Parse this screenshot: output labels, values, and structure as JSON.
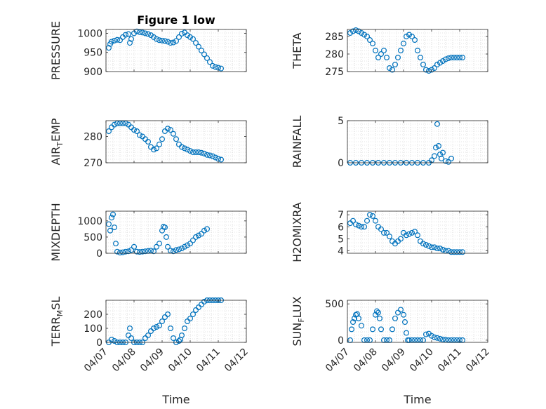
{
  "chart_data": [
    {
      "type": "scatter",
      "title": "Figure 1 low",
      "ylabel": "PRESSURE",
      "ylabel_sub": "",
      "ylabel_post": "",
      "xlim": [
        0,
        5
      ],
      "ylim": [
        900,
        1010
      ],
      "yticks": [
        900,
        950,
        1000
      ],
      "xticks": [
        "04/07",
        "04/08",
        "04/09",
        "04/10",
        "04/11",
        "04/12"
      ],
      "show_xticklabels": false,
      "xlabel": "",
      "x": [
        0.1,
        0.15,
        0.2,
        0.3,
        0.4,
        0.5,
        0.6,
        0.7,
        0.8,
        0.85,
        0.9,
        1.0,
        1.1,
        1.2,
        1.3,
        1.4,
        1.5,
        1.6,
        1.7,
        1.8,
        1.9,
        2.0,
        2.1,
        2.2,
        2.3,
        2.4,
        2.5,
        2.6,
        2.7,
        2.8,
        2.9,
        3.0,
        3.1,
        3.2,
        3.3,
        3.4,
        3.5,
        3.6,
        3.7,
        3.8,
        3.9,
        4.0,
        4.1
      ],
      "y": [
        962,
        972,
        978,
        981,
        983,
        982,
        990,
        996,
        998,
        975,
        985,
        1000,
        1005,
        1003,
        1002,
        1000,
        998,
        995,
        990,
        985,
        982,
        981,
        980,
        978,
        975,
        976,
        980,
        990,
        999,
        1002,
        995,
        990,
        985,
        975,
        965,
        955,
        945,
        935,
        925,
        915,
        912,
        910,
        908
      ]
    },
    {
      "type": "scatter",
      "title": "",
      "ylabel": "THETA",
      "ylabel_sub": "",
      "ylabel_post": "",
      "xlim": [
        0,
        5
      ],
      "ylim": [
        275,
        287
      ],
      "yticks": [
        275,
        280,
        285
      ],
      "xticks": [
        "04/07",
        "04/08",
        "04/09",
        "04/10",
        "04/11",
        "04/12"
      ],
      "show_xticklabels": false,
      "xlabel": "",
      "x": [
        0.1,
        0.2,
        0.3,
        0.4,
        0.5,
        0.6,
        0.7,
        0.8,
        0.9,
        1.0,
        1.1,
        1.2,
        1.3,
        1.4,
        1.5,
        1.6,
        1.7,
        1.8,
        1.9,
        2.0,
        2.1,
        2.2,
        2.3,
        2.4,
        2.5,
        2.6,
        2.7,
        2.8,
        2.9,
        3.0,
        3.1,
        3.2,
        3.3,
        3.4,
        3.5,
        3.6,
        3.7,
        3.8,
        3.9,
        4.0,
        4.1
      ],
      "y": [
        286,
        286.5,
        286.8,
        286.5,
        286,
        285.5,
        285,
        284,
        283,
        281,
        279,
        280,
        281,
        279,
        276,
        275.5,
        277,
        279,
        281,
        283,
        285,
        285.5,
        285,
        284,
        281,
        279,
        277,
        275.5,
        275.2,
        275.5,
        276,
        277,
        277.5,
        278,
        278.5,
        278.8,
        279,
        279,
        279,
        279,
        279
      ]
    },
    {
      "type": "scatter",
      "title": "",
      "ylabel": "AIR",
      "ylabel_sub": "T",
      "ylabel_post": "EMP",
      "xlim": [
        0,
        5
      ],
      "ylim": [
        270,
        286
      ],
      "yticks": [
        270,
        280
      ],
      "xticks": [
        "04/07",
        "04/08",
        "04/09",
        "04/10",
        "04/11",
        "04/12"
      ],
      "show_xticklabels": false,
      "xlabel": "",
      "x": [
        0.1,
        0.2,
        0.3,
        0.4,
        0.5,
        0.6,
        0.7,
        0.8,
        0.9,
        1.0,
        1.1,
        1.2,
        1.3,
        1.4,
        1.5,
        1.6,
        1.7,
        1.8,
        1.9,
        2.0,
        2.1,
        2.2,
        2.3,
        2.4,
        2.5,
        2.6,
        2.7,
        2.8,
        2.9,
        3.0,
        3.1,
        3.2,
        3.3,
        3.4,
        3.5,
        3.6,
        3.7,
        3.8,
        3.9,
        4.0,
        4.1
      ],
      "y": [
        282,
        283.5,
        284.5,
        285,
        285,
        285,
        285,
        284.5,
        283.5,
        282.5,
        282,
        280.5,
        280,
        279,
        278,
        276,
        275,
        275.5,
        277,
        279,
        282,
        283,
        282.5,
        281,
        279,
        277,
        276,
        275.5,
        275,
        274.5,
        274,
        274,
        274,
        273.8,
        273.5,
        273,
        272.8,
        272.5,
        272,
        271.5,
        271.2
      ]
    },
    {
      "type": "scatter",
      "title": "",
      "ylabel": "RAINFALL",
      "ylabel_sub": "",
      "ylabel_post": "",
      "xlim": [
        0,
        5
      ],
      "ylim": [
        0,
        5
      ],
      "yticks": [
        0,
        5
      ],
      "xticks": [
        "04/07",
        "04/08",
        "04/09",
        "04/10",
        "04/11",
        "04/12"
      ],
      "show_xticklabels": false,
      "xlabel": "",
      "x": [
        0.1,
        0.3,
        0.5,
        0.7,
        0.9,
        1.1,
        1.3,
        1.5,
        1.7,
        1.9,
        2.1,
        2.3,
        2.5,
        2.7,
        2.9,
        3.0,
        3.1,
        3.15,
        3.2,
        3.25,
        3.3,
        3.35,
        3.4,
        3.5,
        3.6,
        3.7
      ],
      "y": [
        0,
        0,
        0,
        0,
        0,
        0,
        0,
        0,
        0,
        0,
        0,
        0,
        0,
        0,
        0,
        0.3,
        0.8,
        1.8,
        4.6,
        2.0,
        1.0,
        0.5,
        1.2,
        0.2,
        0.1,
        0.5
      ]
    },
    {
      "type": "scatter",
      "title": "",
      "ylabel": "MIXDEPTH",
      "ylabel_sub": "",
      "ylabel_post": "",
      "xlim": [
        0,
        5
      ],
      "ylim": [
        0,
        1300
      ],
      "yticks": [
        0,
        500,
        1000
      ],
      "xticks": [
        "04/07",
        "04/08",
        "04/09",
        "04/10",
        "04/11",
        "04/12"
      ],
      "show_xticklabels": false,
      "xlabel": "",
      "x": [
        0.1,
        0.15,
        0.2,
        0.25,
        0.3,
        0.35,
        0.4,
        0.5,
        0.6,
        0.7,
        0.8,
        0.9,
        1.0,
        1.1,
        1.2,
        1.3,
        1.4,
        1.5,
        1.6,
        1.7,
        1.8,
        1.9,
        2.0,
        2.05,
        2.1,
        2.15,
        2.2,
        2.3,
        2.4,
        2.5,
        2.6,
        2.7,
        2.8,
        2.9,
        3.0,
        3.1,
        3.2,
        3.3,
        3.4,
        3.5,
        3.6
      ],
      "y": [
        900,
        700,
        1100,
        1200,
        800,
        300,
        50,
        20,
        30,
        50,
        60,
        100,
        200,
        50,
        40,
        50,
        60,
        70,
        80,
        60,
        200,
        300,
        700,
        820,
        800,
        500,
        200,
        80,
        60,
        100,
        120,
        150,
        200,
        250,
        300,
        400,
        500,
        550,
        600,
        700,
        750
      ]
    },
    {
      "type": "scatter",
      "title": "",
      "ylabel": "H2OMIXRA",
      "ylabel_sub": "",
      "ylabel_post": "",
      "xlim": [
        0,
        5
      ],
      "ylim": [
        3.8,
        7.3
      ],
      "yticks": [
        4,
        5,
        6,
        7
      ],
      "xticks": [
        "04/07",
        "04/08",
        "04/09",
        "04/10",
        "04/11",
        "04/12"
      ],
      "show_xticklabels": false,
      "xlabel": "",
      "x": [
        0.1,
        0.2,
        0.3,
        0.4,
        0.5,
        0.6,
        0.7,
        0.8,
        0.9,
        1.0,
        1.1,
        1.2,
        1.3,
        1.4,
        1.5,
        1.6,
        1.7,
        1.8,
        1.9,
        2.0,
        2.1,
        2.2,
        2.3,
        2.4,
        2.5,
        2.6,
        2.7,
        2.8,
        2.9,
        3.0,
        3.1,
        3.2,
        3.3,
        3.4,
        3.5,
        3.6,
        3.7,
        3.8,
        3.9,
        4.0,
        4.1
      ],
      "y": [
        6.3,
        6.5,
        6.2,
        6.1,
        6.0,
        6.0,
        6.5,
        7.0,
        6.9,
        6.5,
        6.0,
        5.8,
        5.5,
        5.5,
        5.2,
        4.8,
        4.6,
        4.8,
        5.0,
        5.5,
        5.3,
        5.4,
        5.5,
        5.6,
        5.3,
        4.8,
        4.6,
        4.5,
        4.4,
        4.3,
        4.3,
        4.2,
        4.2,
        4.1,
        4.0,
        4.0,
        3.9,
        3.9,
        3.9,
        3.9,
        3.9
      ]
    },
    {
      "type": "scatter",
      "title": "",
      "ylabel": "TERR",
      "ylabel_sub": "M",
      "ylabel_post": "SL",
      "xlim": [
        0,
        5
      ],
      "ylim": [
        0,
        300
      ],
      "yticks": [
        0,
        100,
        200
      ],
      "xticks": [
        "04/07",
        "04/08",
        "04/09",
        "04/10",
        "04/11",
        "04/12"
      ],
      "show_xticklabels": true,
      "xlabel": "Time",
      "x": [
        0.1,
        0.2,
        0.3,
        0.4,
        0.5,
        0.6,
        0.7,
        0.8,
        0.85,
        0.9,
        1.0,
        1.1,
        1.2,
        1.3,
        1.4,
        1.5,
        1.6,
        1.7,
        1.8,
        1.9,
        2.0,
        2.1,
        2.2,
        2.3,
        2.4,
        2.5,
        2.6,
        2.65,
        2.7,
        2.8,
        2.9,
        3.0,
        3.1,
        3.2,
        3.3,
        3.4,
        3.5,
        3.6,
        3.7,
        3.8,
        3.9,
        4.0,
        4.1
      ],
      "y": [
        0,
        20,
        10,
        0,
        0,
        0,
        0,
        50,
        100,
        30,
        0,
        0,
        0,
        0,
        30,
        50,
        80,
        100,
        110,
        120,
        150,
        180,
        200,
        100,
        30,
        0,
        10,
        20,
        50,
        100,
        150,
        170,
        200,
        230,
        250,
        270,
        290,
        300,
        300,
        300,
        300,
        300,
        300
      ]
    },
    {
      "type": "scatter",
      "title": "",
      "ylabel": "SUN",
      "ylabel_sub": "F",
      "ylabel_post": "LUX",
      "xlim": [
        0,
        5
      ],
      "ylim": [
        -30,
        550
      ],
      "yticks": [
        0,
        500
      ],
      "xticks": [
        "04/07",
        "04/08",
        "04/09",
        "04/10",
        "04/11",
        "04/12"
      ],
      "show_xticklabels": true,
      "xlabel": "Time",
      "x": [
        0.1,
        0.15,
        0.2,
        0.25,
        0.3,
        0.35,
        0.4,
        0.5,
        0.6,
        0.7,
        0.8,
        0.9,
        1.0,
        1.05,
        1.1,
        1.15,
        1.2,
        1.3,
        1.4,
        1.5,
        1.6,
        1.7,
        1.8,
        1.9,
        2.0,
        2.05,
        2.1,
        2.15,
        2.2,
        2.3,
        2.4,
        2.5,
        2.6,
        2.7,
        2.8,
        2.9,
        3.0,
        3.1,
        3.2,
        3.3,
        3.4,
        3.5,
        3.6,
        3.7,
        3.8,
        3.9,
        4.0,
        4.1
      ],
      "y": [
        0,
        150,
        250,
        300,
        350,
        360,
        300,
        200,
        0,
        0,
        0,
        150,
        350,
        400,
        380,
        300,
        150,
        0,
        0,
        0,
        150,
        300,
        380,
        420,
        350,
        250,
        100,
        0,
        0,
        0,
        0,
        0,
        0,
        0,
        80,
        90,
        60,
        40,
        30,
        20,
        10,
        5,
        0,
        0,
        0,
        0,
        0,
        0
      ]
    }
  ]
}
